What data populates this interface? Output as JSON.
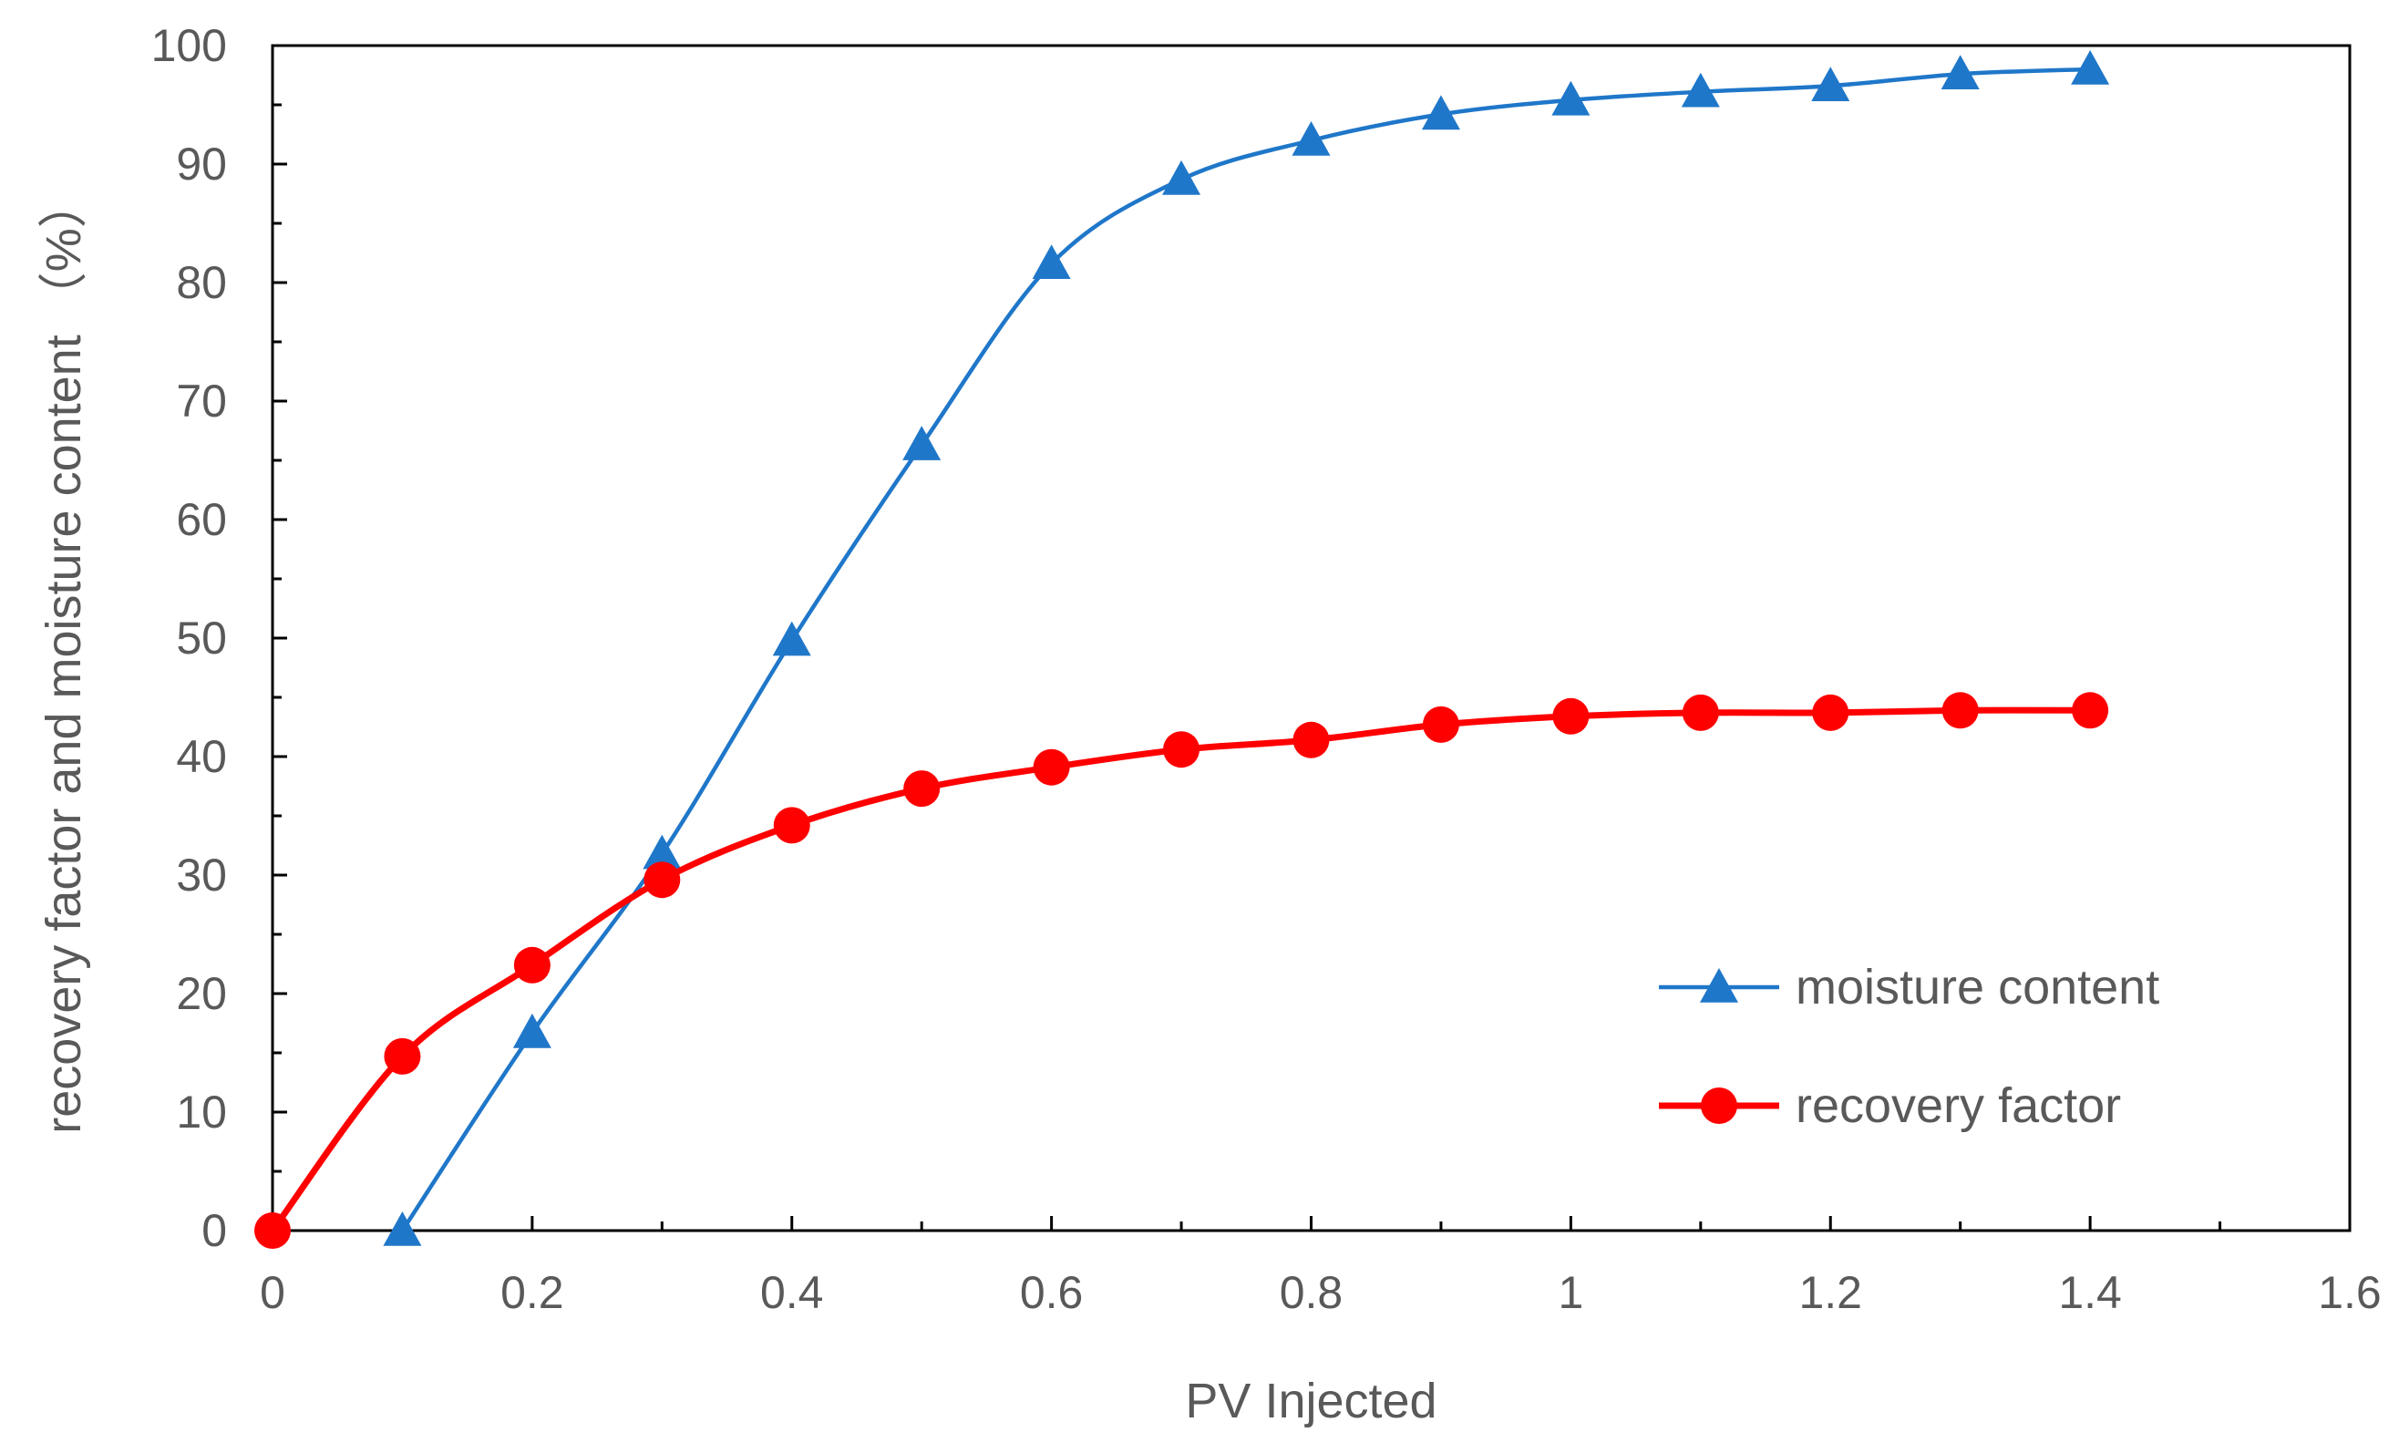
{
  "chart_data": {
    "type": "line",
    "title": "",
    "xlabel": "PV Injected",
    "ylabel": "recovery factor and moisture content （%）",
    "xlim": [
      0,
      1.6
    ],
    "ylim": [
      0,
      100
    ],
    "x_ticks": [
      0,
      0.2,
      0.4,
      0.6,
      0.8,
      1,
      1.2,
      1.4,
      1.6
    ],
    "x_tick_labels": [
      "0",
      "0.2",
      "0.4",
      "0.6",
      "0.8",
      "1",
      "1.2",
      "1.4",
      "1.6"
    ],
    "y_ticks": [
      0,
      10,
      20,
      30,
      40,
      50,
      60,
      70,
      80,
      90,
      100
    ],
    "y_tick_labels": [
      "0",
      "10",
      "20",
      "30",
      "40",
      "50",
      "60",
      "70",
      "80",
      "90",
      "100"
    ],
    "grid": false,
    "legend_position": "lower-right",
    "series": [
      {
        "name": "moisture content",
        "color": "#1F77C9",
        "marker": "triangle",
        "x": [
          0.1,
          0.2,
          0.3,
          0.4,
          0.5,
          0.6,
          0.7,
          0.8,
          0.9,
          1.0,
          1.1,
          1.2,
          1.3,
          1.4
        ],
        "values": [
          0,
          16.7,
          31.8,
          49.8,
          66.3,
          81.6,
          88.7,
          92.0,
          94.2,
          95.4,
          96.1,
          96.6,
          97.6,
          98.0
        ]
      },
      {
        "name": "recovery factor",
        "color": "#FF0000",
        "marker": "circle",
        "x": [
          0,
          0.1,
          0.2,
          0.3,
          0.4,
          0.5,
          0.6,
          0.7,
          0.8,
          0.9,
          1.0,
          1.1,
          1.2,
          1.3,
          1.4
        ],
        "values": [
          0,
          14.7,
          22.4,
          29.6,
          34.2,
          37.3,
          39.1,
          40.6,
          41.4,
          42.7,
          43.4,
          43.7,
          43.7,
          43.9,
          43.9
        ]
      }
    ]
  }
}
